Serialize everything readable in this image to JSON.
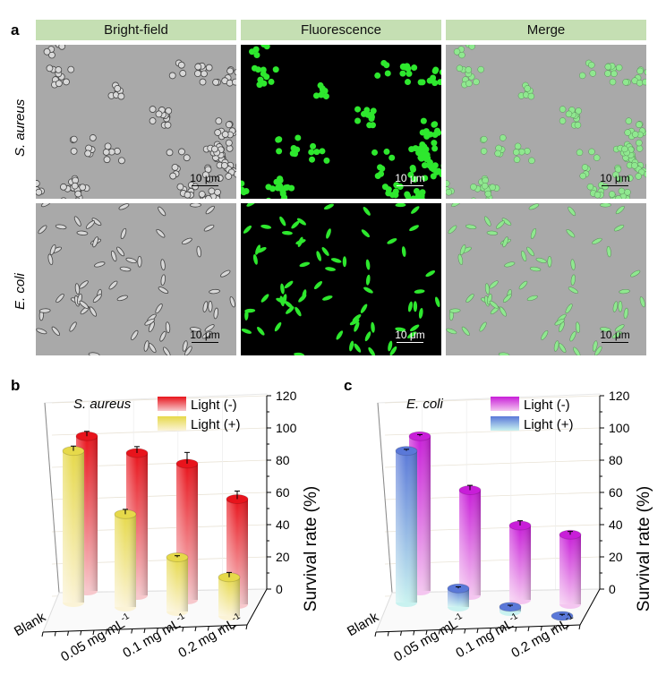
{
  "panel_a": {
    "letter": "a",
    "columns": [
      "Bright-field",
      "Fluorescence",
      "Merge"
    ],
    "rows": [
      "S. aureus",
      "E. coli"
    ],
    "scale_bar": "10 μm"
  },
  "chart_data": [
    {
      "panel": "b",
      "type": "bar",
      "style": "3d-cylinder",
      "inset_label": "S. aureus",
      "categories": [
        "Blank",
        "0.05 mg mL",
        "0.1 mg mL",
        "0.2 mg mL"
      ],
      "category_unit_superscript": "-1",
      "ylabel": "Survival rate (%)",
      "ylim": [
        0,
        120
      ],
      "yticks": [
        "0",
        "20",
        "40",
        "60",
        "80",
        "100",
        "120"
      ],
      "grid": true,
      "legend": "top-center",
      "series": [
        {
          "name": "Light (-)",
          "values": [
            100,
            92,
            88,
            68
          ],
          "errors": [
            3,
            4,
            7,
            5
          ],
          "color_top": "#e8141c",
          "color_bottom": "#f7c8cc"
        },
        {
          "name": "Light (+)",
          "values": [
            98,
            60,
            35,
            25
          ],
          "errors": [
            3,
            3,
            1,
            3
          ],
          "color_top": "#e6d94a",
          "color_bottom": "#fbf3d6"
        }
      ]
    },
    {
      "panel": "c",
      "type": "bar",
      "style": "3d-cylinder",
      "inset_label": "E. coli",
      "categories": [
        "Blank",
        "0.05 mg mL",
        "0.1 mg mL",
        "0.2 mg mL"
      ],
      "category_unit_superscript": "-1",
      "ylabel": "Survival rate (%)",
      "ylim": [
        0,
        120
      ],
      "yticks": [
        "0",
        "20",
        "40",
        "60",
        "80",
        "100",
        "120"
      ],
      "grid": true,
      "legend": "top-center",
      "series": [
        {
          "name": "Light (-)",
          "values": [
            100,
            68,
            48,
            45
          ],
          "errors": [
            1,
            3,
            3,
            2
          ],
          "color_top": "#c81ed8",
          "color_bottom": "#f4c6f0"
        },
        {
          "name": "Light (+)",
          "values": [
            98,
            12,
            3,
            0
          ],
          "errors": [
            1,
            1,
            1,
            1
          ],
          "color_top": "#5a78d8",
          "color_bottom": "#c9f2f0"
        }
      ]
    }
  ]
}
